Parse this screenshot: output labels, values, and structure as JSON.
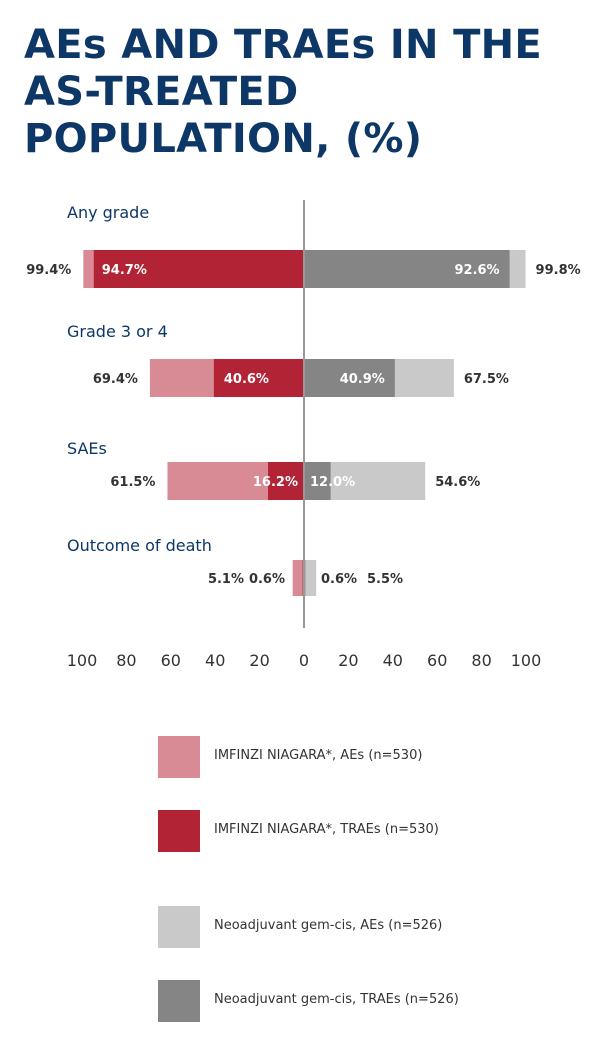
{
  "title_lines": [
    "AEs AND TRAEs IN THE",
    "AS-TREATED",
    "POPULATION, (%)"
  ],
  "colors": {
    "imfinzi_aes": "#d88b95",
    "imfinzi_traes": "#b22335",
    "gemcis_aes": "#c9c9c9",
    "gemcis_traes": "#858585",
    "title": "#0c3766",
    "axis": "#999999"
  },
  "chart_data": {
    "type": "bar",
    "orientation": "horizontal-butterfly",
    "categories": [
      "Any grade",
      "Grade 3 or 4",
      "SAEs",
      "Outcome of death"
    ],
    "series": [
      {
        "name": "IMFINZI NIAGARA*, AEs (n=530)",
        "side": "left",
        "values": [
          99.4,
          69.4,
          61.5,
          5.1
        ],
        "labels": [
          "99.4%",
          "69.4%",
          "61.5%",
          "5.1%"
        ]
      },
      {
        "name": "IMFINZI NIAGARA*, TRAEs (n=530)",
        "side": "left",
        "values": [
          94.7,
          40.6,
          16.2,
          0.6
        ],
        "labels": [
          "94.7%",
          "40.6%",
          "16.2%",
          "0.6%"
        ]
      },
      {
        "name": "Neoadjuvant gem-cis, AEs (n=526)",
        "side": "right",
        "values": [
          99.8,
          67.5,
          54.6,
          5.5
        ],
        "labels": [
          "99.8%",
          "67.5%",
          "54.6%",
          "5.5%"
        ]
      },
      {
        "name": "Neoadjuvant gem-cis, TRAEs (n=526)",
        "side": "right",
        "values": [
          92.6,
          40.9,
          12.0,
          0.6
        ],
        "labels": [
          "92.6%",
          "40.9%",
          "12.0%",
          "0.6%"
        ]
      }
    ],
    "ticks": [
      100,
      80,
      60,
      40,
      20,
      0,
      20,
      40,
      60,
      80,
      100
    ],
    "tick_labels": [
      "100",
      "80",
      "60",
      "40",
      "20",
      "0",
      "20",
      "40",
      "60",
      "80",
      "100"
    ],
    "xlim": [
      -100,
      100
    ],
    "grid": false,
    "legend_position": "bottom"
  },
  "legend": [
    {
      "label": "IMFINZI NIAGARA*, AEs (n=530)",
      "color": "#d88b95"
    },
    {
      "label": "IMFINZI NIAGARA*, TRAEs (n=530)",
      "color": "#b22335"
    },
    {
      "label": "Neoadjuvant gem-cis, AEs (n=526)",
      "color": "#c9c9c9"
    },
    {
      "label": "Neoadjuvant gem-cis, TRAEs (n=526)",
      "color": "#858585"
    }
  ]
}
